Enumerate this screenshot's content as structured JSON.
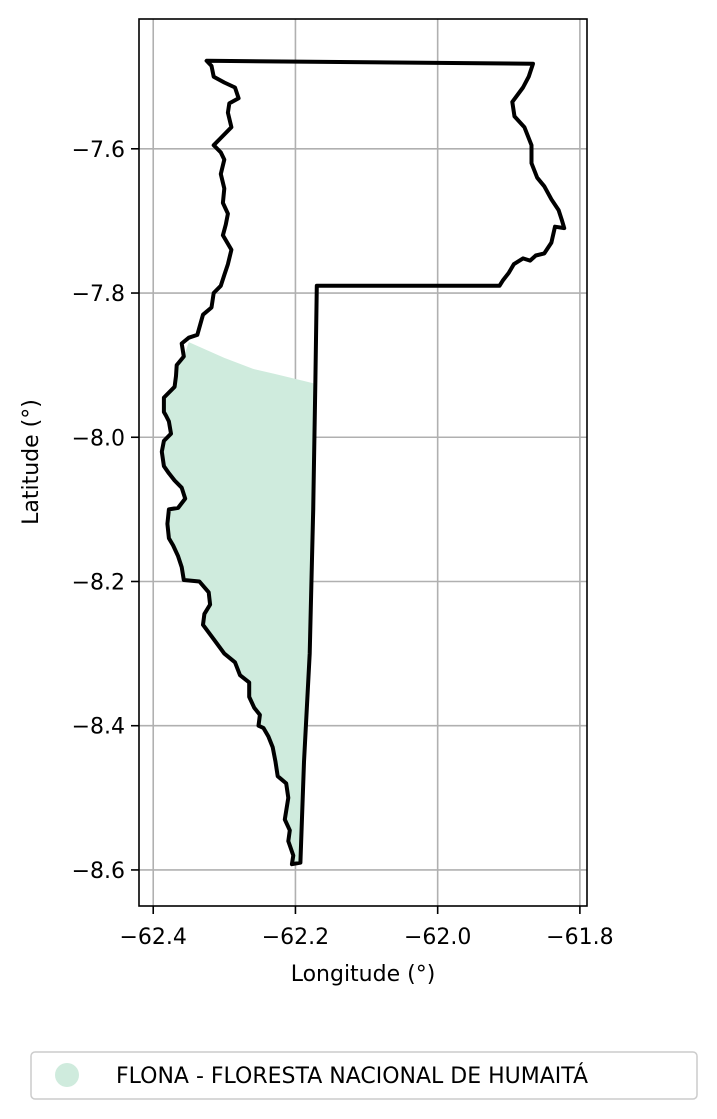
{
  "chart_data": {
    "type": "map",
    "xlabel": "Longitude (°)",
    "ylabel": "Latitude (°)",
    "xlim": [
      -62.42,
      -61.79
    ],
    "ylim": [
      -8.65,
      -7.42
    ],
    "xticks": [
      -62.4,
      -62.2,
      -62.0,
      -61.8
    ],
    "yticks": [
      -7.6,
      -7.8,
      -8.0,
      -8.2,
      -8.4,
      -8.6
    ],
    "xtick_labels": [
      "−62.4",
      "−62.2",
      "−62.0",
      "−61.8"
    ],
    "ytick_labels": [
      "−7.6",
      "−7.8",
      "−8.0",
      "−8.2",
      "−8.4",
      "−8.6"
    ],
    "grid": true,
    "legend_position": "bottom-center",
    "legend": [
      {
        "label": "FLONA - FLORESTA NACIONAL DE HUMAITÁ",
        "color": "#cfebdd"
      }
    ],
    "boundary": {
      "color": "#000000",
      "points": [
        [
          -62.325,
          -7.478
        ],
        [
          -61.866,
          -7.482
        ],
        [
          -61.872,
          -7.5
        ],
        [
          -61.88,
          -7.515
        ],
        [
          -61.895,
          -7.535
        ],
        [
          -61.892,
          -7.555
        ],
        [
          -61.878,
          -7.57
        ],
        [
          -61.868,
          -7.595
        ],
        [
          -61.868,
          -7.62
        ],
        [
          -61.86,
          -7.64
        ],
        [
          -61.85,
          -7.652
        ],
        [
          -61.84,
          -7.67
        ],
        [
          -61.83,
          -7.685
        ],
        [
          -61.825,
          -7.7
        ],
        [
          -61.822,
          -7.71
        ],
        [
          -61.835,
          -7.708
        ],
        [
          -61.84,
          -7.73
        ],
        [
          -61.85,
          -7.745
        ],
        [
          -61.862,
          -7.748
        ],
        [
          -61.87,
          -7.755
        ],
        [
          -61.88,
          -7.752
        ],
        [
          -61.893,
          -7.76
        ],
        [
          -61.9,
          -7.772
        ],
        [
          -61.908,
          -7.782
        ],
        [
          -61.913,
          -7.79
        ],
        [
          -62.17,
          -7.79
        ],
        [
          -62.172,
          -7.92
        ],
        [
          -62.175,
          -8.1
        ],
        [
          -62.18,
          -8.3
        ],
        [
          -62.188,
          -8.45
        ],
        [
          -62.193,
          -8.59
        ],
        [
          -62.205,
          -8.592
        ],
        [
          -62.203,
          -8.58
        ],
        [
          -62.21,
          -8.56
        ],
        [
          -62.208,
          -8.545
        ],
        [
          -62.215,
          -8.53
        ],
        [
          -62.21,
          -8.5
        ],
        [
          -62.213,
          -8.48
        ],
        [
          -62.225,
          -8.47
        ],
        [
          -62.228,
          -8.45
        ],
        [
          -62.232,
          -8.43
        ],
        [
          -62.238,
          -8.415
        ],
        [
          -62.245,
          -8.403
        ],
        [
          -62.252,
          -8.4
        ],
        [
          -62.25,
          -8.385
        ],
        [
          -62.258,
          -8.375
        ],
        [
          -62.265,
          -8.36
        ],
        [
          -62.265,
          -8.34
        ],
        [
          -62.278,
          -8.33
        ],
        [
          -62.285,
          -8.312
        ],
        [
          -62.3,
          -8.3
        ],
        [
          -62.315,
          -8.28
        ],
        [
          -62.33,
          -8.26
        ],
        [
          -62.328,
          -8.245
        ],
        [
          -62.32,
          -8.232
        ],
        [
          -62.322,
          -8.215
        ],
        [
          -62.335,
          -8.2
        ],
        [
          -62.357,
          -8.198
        ],
        [
          -62.36,
          -8.18
        ],
        [
          -62.365,
          -8.165
        ],
        [
          -62.372,
          -8.15
        ],
        [
          -62.378,
          -8.14
        ],
        [
          -62.38,
          -8.12
        ],
        [
          -62.378,
          -8.1
        ],
        [
          -62.365,
          -8.098
        ],
        [
          -62.355,
          -8.085
        ],
        [
          -62.36,
          -8.07
        ],
        [
          -62.37,
          -8.06
        ],
        [
          -62.378,
          -8.05
        ],
        [
          -62.385,
          -8.04
        ],
        [
          -62.388,
          -8.02
        ],
        [
          -62.385,
          -8.005
        ],
        [
          -62.375,
          -7.995
        ],
        [
          -62.378,
          -7.978
        ],
        [
          -62.382,
          -7.97
        ],
        [
          -62.385,
          -7.965
        ],
        [
          -62.385,
          -7.945
        ],
        [
          -62.37,
          -7.93
        ],
        [
          -62.368,
          -7.915
        ],
        [
          -62.367,
          -7.9
        ],
        [
          -62.357,
          -7.888
        ],
        [
          -62.36,
          -7.87
        ],
        [
          -62.35,
          -7.862
        ],
        [
          -62.338,
          -7.858
        ],
        [
          -62.33,
          -7.83
        ],
        [
          -62.318,
          -7.82
        ],
        [
          -62.315,
          -7.8
        ],
        [
          -62.305,
          -7.79
        ],
        [
          -62.3,
          -7.775
        ],
        [
          -62.295,
          -7.76
        ],
        [
          -62.29,
          -7.74
        ],
        [
          -62.302,
          -7.72
        ],
        [
          -62.298,
          -7.705
        ],
        [
          -62.295,
          -7.69
        ],
        [
          -62.302,
          -7.675
        ],
        [
          -62.3,
          -7.655
        ],
        [
          -62.305,
          -7.635
        ],
        [
          -62.3,
          -7.615
        ],
        [
          -62.305,
          -7.605
        ],
        [
          -62.315,
          -7.595
        ],
        [
          -62.305,
          -7.585
        ],
        [
          -62.29,
          -7.57
        ],
        [
          -62.295,
          -7.55
        ],
        [
          -62.293,
          -7.537
        ],
        [
          -62.28,
          -7.53
        ],
        [
          -62.285,
          -7.515
        ],
        [
          -62.3,
          -7.508
        ],
        [
          -62.315,
          -7.5
        ],
        [
          -62.318,
          -7.485
        ],
        [
          -62.325,
          -7.478
        ]
      ]
    },
    "regions": [
      {
        "name": "FLONA - FLORESTA NACIONAL DE HUMAITÁ",
        "color": "#cfebdd",
        "points": [
          [
            -62.35,
            -7.868
          ],
          [
            -62.3,
            -7.89
          ],
          [
            -62.26,
            -7.905
          ],
          [
            -62.23,
            -7.912
          ],
          [
            -62.175,
            -7.925
          ],
          [
            -62.172,
            -8.1
          ],
          [
            -62.18,
            -8.3
          ],
          [
            -62.188,
            -8.45
          ],
          [
            -62.193,
            -8.59
          ],
          [
            -62.205,
            -8.592
          ],
          [
            -62.203,
            -8.58
          ],
          [
            -62.21,
            -8.56
          ],
          [
            -62.208,
            -8.545
          ],
          [
            -62.215,
            -8.53
          ],
          [
            -62.21,
            -8.5
          ],
          [
            -62.213,
            -8.48
          ],
          [
            -62.225,
            -8.47
          ],
          [
            -62.228,
            -8.45
          ],
          [
            -62.232,
            -8.43
          ],
          [
            -62.238,
            -8.415
          ],
          [
            -62.245,
            -8.403
          ],
          [
            -62.252,
            -8.4
          ],
          [
            -62.25,
            -8.385
          ],
          [
            -62.258,
            -8.375
          ],
          [
            -62.265,
            -8.36
          ],
          [
            -62.265,
            -8.34
          ],
          [
            -62.278,
            -8.33
          ],
          [
            -62.285,
            -8.312
          ],
          [
            -62.3,
            -8.3
          ],
          [
            -62.315,
            -8.28
          ],
          [
            -62.33,
            -8.26
          ],
          [
            -62.328,
            -8.245
          ],
          [
            -62.32,
            -8.232
          ],
          [
            -62.322,
            -8.215
          ],
          [
            -62.335,
            -8.2
          ],
          [
            -62.357,
            -8.198
          ],
          [
            -62.36,
            -8.18
          ],
          [
            -62.365,
            -8.165
          ],
          [
            -62.372,
            -8.15
          ],
          [
            -62.378,
            -8.14
          ],
          [
            -62.38,
            -8.12
          ],
          [
            -62.378,
            -8.1
          ],
          [
            -62.365,
            -8.098
          ],
          [
            -62.355,
            -8.085
          ],
          [
            -62.36,
            -8.07
          ],
          [
            -62.37,
            -8.06
          ],
          [
            -62.378,
            -8.05
          ],
          [
            -62.385,
            -8.04
          ],
          [
            -62.388,
            -8.02
          ],
          [
            -62.385,
            -8.005
          ],
          [
            -62.375,
            -7.995
          ],
          [
            -62.378,
            -7.978
          ],
          [
            -62.382,
            -7.97
          ],
          [
            -62.385,
            -7.965
          ],
          [
            -62.385,
            -7.945
          ],
          [
            -62.37,
            -7.93
          ],
          [
            -62.368,
            -7.915
          ],
          [
            -62.367,
            -7.9
          ],
          [
            -62.357,
            -7.888
          ],
          [
            -62.35,
            -7.868
          ]
        ]
      }
    ]
  }
}
